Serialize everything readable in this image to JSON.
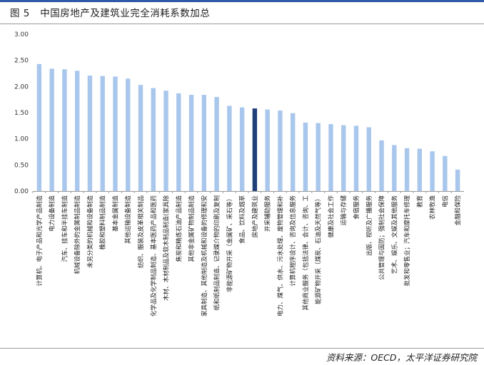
{
  "figure": {
    "label": "图 5",
    "title": "中国房地产及建筑业完全消耗系数加总",
    "source": "资料来源：OECD，太平洋证券研究院"
  },
  "colors": {
    "bar": "#a9c7ec",
    "highlight": "#1f3f78",
    "rule": "#2e5aa8"
  },
  "chart_data": {
    "type": "bar",
    "title": "",
    "xlabel": "",
    "ylabel": "",
    "ylim": [
      0,
      3
    ],
    "yticks": [
      "0.00",
      "0.50",
      "1.00",
      "1.50",
      "2.00",
      "2.50",
      "3.00"
    ],
    "grid": false,
    "legend": "none",
    "highlight_category": "房地产及建筑业",
    "categories": [
      "计算机、电子产品和光学产品制造",
      "电力设备制造",
      "汽车、挂车和半挂车制造",
      "机械设备除外的金属制品制造",
      "未另分类的机械和设备制造",
      "橡胶和塑料制品制造",
      "基本金属制造",
      "其他运输设备制造",
      "纺织、服装及皮革相关制品",
      "化学品及化学制品制造、基本医药产品和医药",
      "木材、木材制品及软木制品制造(家具除",
      "焦炭和精炼石油产品制造",
      "其他非金属矿物制品制造",
      "家具制造、其他制造及机械和设备的修理和安",
      "纸和纸制品制造、记录媒介物的印刷及复制",
      "非能源矿物开采（金属矿、采石等）",
      "食品、饮料及烟草",
      "房地产及建筑业",
      "开采辅助服务",
      "电力、煤气、供水、污水处理、废物管理和补",
      "计算机程序设计、咨询及信息服务",
      "其他商业服务（包括法律、会计、咨询、工",
      "能源矿物开采（煤炭、石油及天然气等）",
      "健康及社会工作",
      "运输与存储",
      "食宿服务",
      "出版、视听及广播服务",
      "公共管理与国防；强制社会保障",
      "艺术、娱乐、文娱及其他服务",
      "批发和零售业；汽车和摩托车修理",
      "教育",
      "农林牧渔",
      "电信",
      "金融和保险"
    ],
    "values": [
      2.43,
      2.34,
      2.33,
      2.3,
      2.21,
      2.2,
      2.19,
      2.15,
      2.03,
      1.97,
      1.92,
      1.87,
      1.84,
      1.84,
      1.8,
      1.63,
      1.6,
      1.58,
      1.56,
      1.54,
      1.49,
      1.31,
      1.3,
      1.28,
      1.26,
      1.25,
      1.22,
      0.97,
      0.88,
      0.82,
      0.81,
      0.76,
      0.67,
      0.41
    ]
  }
}
